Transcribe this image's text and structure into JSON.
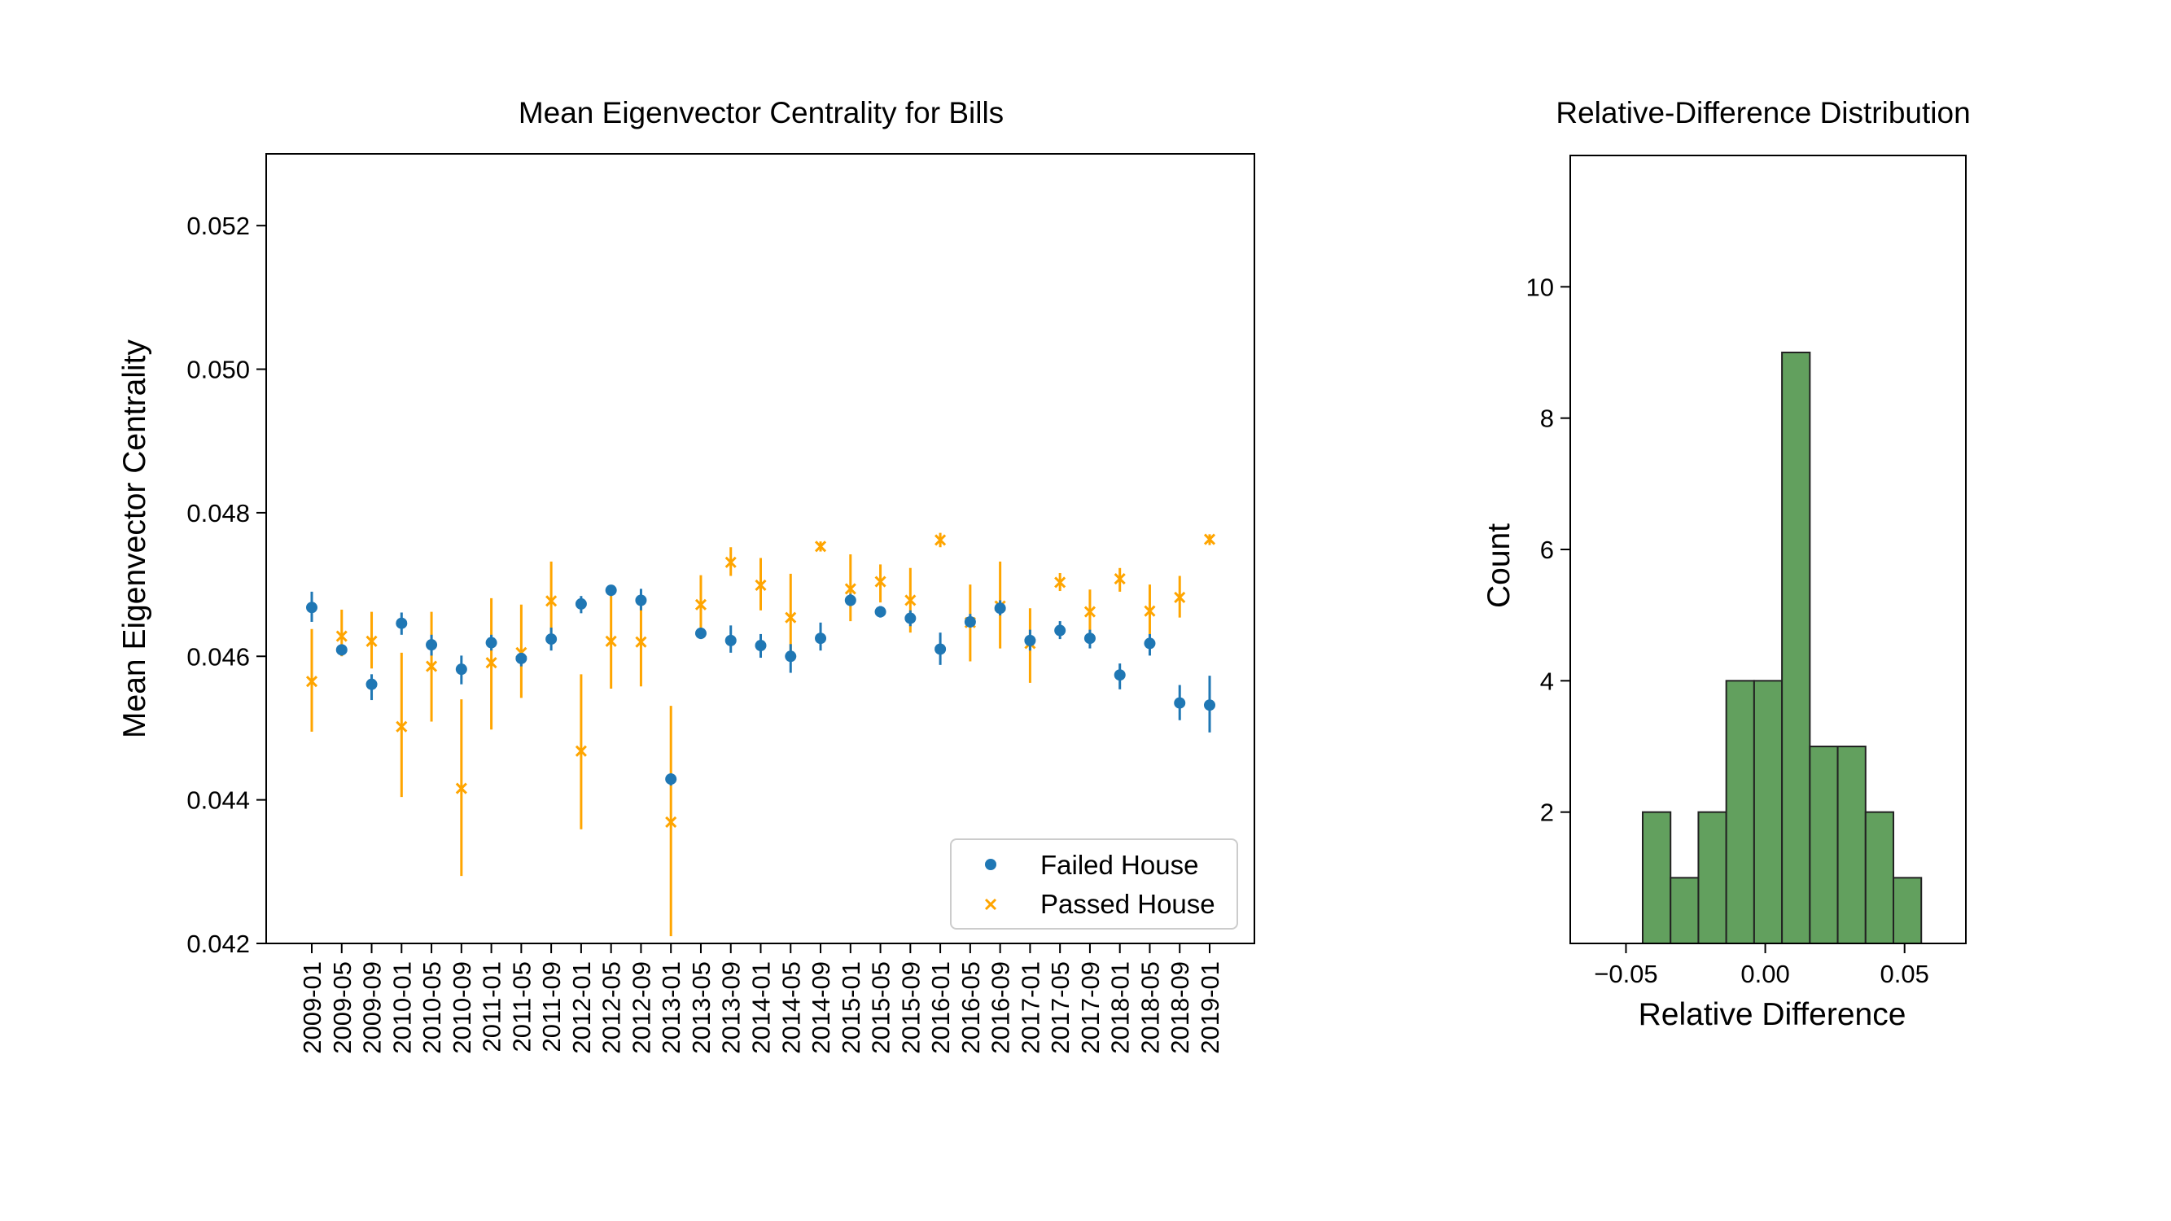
{
  "chart_data": [
    {
      "type": "scatter",
      "title": "Mean Eigenvector Centrality for Bills",
      "xlabel": "",
      "ylabel": "Mean Eigenvector Centrality",
      "categories": [
        "2009-01",
        "2009-05",
        "2009-09",
        "2010-01",
        "2010-05",
        "2010-09",
        "2011-01",
        "2011-05",
        "2011-09",
        "2012-01",
        "2012-05",
        "2012-09",
        "2013-01",
        "2013-05",
        "2013-09",
        "2014-01",
        "2014-05",
        "2014-09",
        "2015-01",
        "2015-05",
        "2015-09",
        "2016-01",
        "2016-05",
        "2016-09",
        "2017-01",
        "2017-05",
        "2017-09",
        "2018-01",
        "2018-05",
        "2018-09",
        "2019-01"
      ],
      "yticks": [
        "0.042",
        "0.044",
        "0.046",
        "0.048",
        "0.050",
        "0.052"
      ],
      "ylim": [
        0.042,
        0.053
      ],
      "grid": false,
      "legend_position": "lower-right",
      "series": [
        {
          "name": "Failed House",
          "marker": "circle",
          "color": "#1f77b4",
          "values": [
            0.04668,
            0.04609,
            0.04561,
            0.04646,
            0.04616,
            0.04582,
            0.04619,
            0.04597,
            0.04624,
            0.04673,
            0.04692,
            0.04678,
            0.04429,
            0.04632,
            0.04622,
            0.04615,
            0.046,
            0.04625,
            0.04678,
            0.04662,
            0.04653,
            0.0461,
            0.04648,
            0.04667,
            0.04622,
            0.04636,
            0.04625,
            0.04574,
            0.04618,
            0.04535,
            0.04532
          ],
          "err_lower": [
            0.04648,
            0.04601,
            0.04539,
            0.0463,
            0.04601,
            0.04561,
            0.04608,
            0.04586,
            0.04608,
            0.0466,
            0.04684,
            0.04664,
            0.0442,
            0.04624,
            0.04605,
            0.04598,
            0.04577,
            0.04608,
            0.0467,
            0.04654,
            0.04642,
            0.04588,
            0.0464,
            0.04657,
            0.04608,
            0.04624,
            0.04611,
            0.04554,
            0.04601,
            0.04511,
            0.04494
          ],
          "err_upper": [
            0.0469,
            0.04616,
            0.04575,
            0.04661,
            0.0463,
            0.04601,
            0.0463,
            0.04608,
            0.0464,
            0.04684,
            0.04698,
            0.04694,
            0.04437,
            0.0464,
            0.04643,
            0.04631,
            0.04617,
            0.04647,
            0.04687,
            0.0467,
            0.04664,
            0.04633,
            0.04659,
            0.04678,
            0.04637,
            0.04649,
            0.04637,
            0.0459,
            0.04631,
            0.0456,
            0.04573
          ]
        },
        {
          "name": "Passed House",
          "marker": "x",
          "color": "#ffa500",
          "values": [
            0.04565,
            0.04628,
            0.04621,
            0.04502,
            0.04586,
            0.04416,
            0.04591,
            0.04605,
            0.04677,
            0.04468,
            0.04621,
            0.0462,
            0.04369,
            0.04672,
            0.04731,
            0.04699,
            0.04654,
            0.04753,
            0.04694,
            0.04704,
            0.04678,
            0.04762,
            0.04647,
            0.0467,
            0.04618,
            0.04703,
            0.04662,
            0.04708,
            0.04663,
            0.04682,
            0.04763
          ],
          "err_lower": [
            0.04495,
            0.046,
            0.04583,
            0.04404,
            0.04509,
            0.04294,
            0.04498,
            0.04542,
            0.04624,
            0.04359,
            0.04555,
            0.04558,
            0.0421,
            0.04627,
            0.04712,
            0.04664,
            0.04597,
            0.04746,
            0.04649,
            0.04675,
            0.04633,
            0.04752,
            0.04593,
            0.04611,
            0.04563,
            0.04691,
            0.04626,
            0.0469,
            0.04621,
            0.04654,
            0.04755
          ],
          "err_upper": [
            0.04638,
            0.04665,
            0.04662,
            0.04605,
            0.04662,
            0.0454,
            0.04681,
            0.04672,
            0.04732,
            0.04575,
            0.0469,
            0.04683,
            0.04531,
            0.04713,
            0.04752,
            0.04737,
            0.04715,
            0.0476,
            0.04742,
            0.04728,
            0.04723,
            0.04772,
            0.047,
            0.04732,
            0.04667,
            0.04716,
            0.04693,
            0.04723,
            0.047,
            0.04712,
            0.0477
          ]
        }
      ]
    },
    {
      "type": "histogram",
      "title": "Relative-Difference Distribution",
      "xlabel": "Relative Difference",
      "ylabel": "Count",
      "xlim": [
        -0.07,
        0.072
      ],
      "ylim": [
        0,
        12
      ],
      "xticks": [
        {
          "value": -0.05,
          "label": "−0.05"
        },
        {
          "value": 0.0,
          "label": "0.00"
        },
        {
          "value": 0.05,
          "label": "0.05"
        }
      ],
      "yticks": [
        "2",
        "4",
        "6",
        "8",
        "10"
      ],
      "grid": false,
      "color": "#62a05e",
      "bins": [
        {
          "x0": -0.044,
          "x1": -0.034,
          "count": 2
        },
        {
          "x0": -0.034,
          "x1": -0.024,
          "count": 1
        },
        {
          "x0": -0.024,
          "x1": -0.014,
          "count": 2
        },
        {
          "x0": -0.014,
          "x1": -0.004,
          "count": 4
        },
        {
          "x0": -0.004,
          "x1": 0.006,
          "count": 4
        },
        {
          "x0": 0.006,
          "x1": 0.016,
          "count": 9
        },
        {
          "x0": 0.016,
          "x1": 0.026,
          "count": 3
        },
        {
          "x0": 0.026,
          "x1": 0.036,
          "count": 3
        },
        {
          "x0": 0.036,
          "x1": 0.046,
          "count": 2
        },
        {
          "x0": 0.046,
          "x1": 0.056,
          "count": 1
        }
      ]
    }
  ]
}
